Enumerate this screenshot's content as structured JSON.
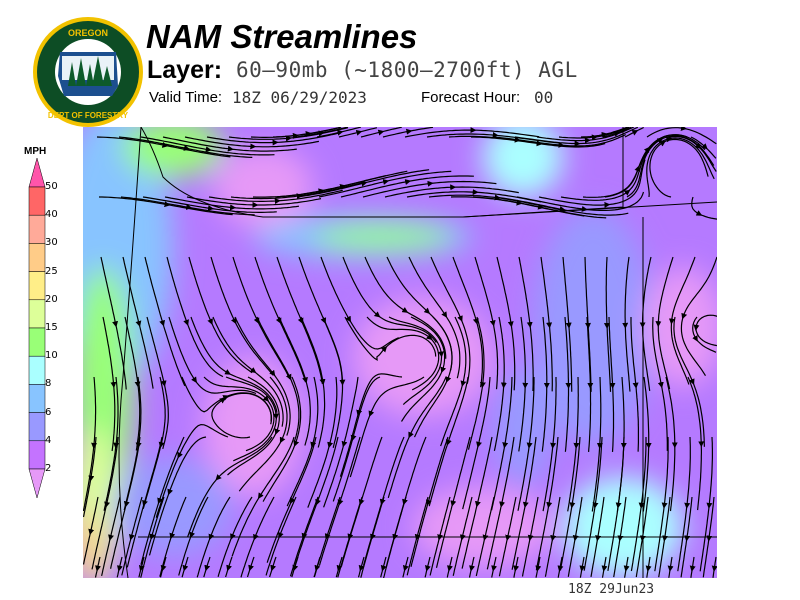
{
  "header": {
    "title": "NAM Streamlines",
    "layer_label": "Layer:",
    "layer_value": "60–90mb (~1800–2700ft) AGL",
    "valid_time_label": "Valid Time:",
    "valid_time_value": "18Z 06/29/2023",
    "forecast_hour_label": "Forecast Hour:",
    "forecast_hour_value": "00"
  },
  "logo": {
    "text_top": "OREGON",
    "text_bottom": "DEPARTMENT OF FORESTRY"
  },
  "legend": {
    "unit": "MPH",
    "ticks": [
      "50",
      "40",
      "30",
      "25",
      "20",
      "15",
      "10",
      "8",
      "6",
      "4",
      "2"
    ],
    "colors": {
      "above_50": "#ff55aa",
      "40-50": "#ff6666",
      "30-40": "#ffaa99",
      "25-30": "#ffcc88",
      "20-25": "#ffee88",
      "15-20": "#ddff99",
      "10-15": "#99ff77",
      "8-10": "#aaffff",
      "6-8": "#88c4ff",
      "4-6": "#9999ff",
      "2-4": "#c473ff",
      "below_2": "#e699f7"
    }
  },
  "map": {
    "timestamp": "18Z 29Jun23"
  }
}
